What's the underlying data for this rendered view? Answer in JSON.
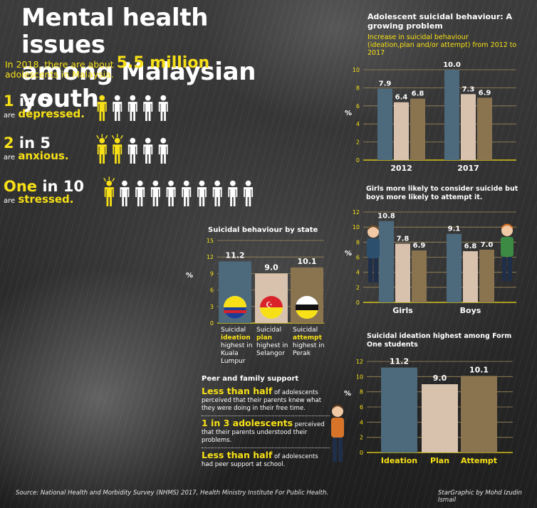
{
  "header": {
    "title_line1": "Mental health issues",
    "title_line2": "among Malaysian youth",
    "intro_pre": "In 2018, there are about",
    "intro_big": "5.5 million",
    "intro_post": "adolescents in Malaysia."
  },
  "stats": [
    {
      "num": "1",
      "in": " in 5",
      "are": "are",
      "word": "depressed.",
      "highlighted": 1,
      "total": 5
    },
    {
      "num": "2",
      "in": " in 5",
      "are": "are",
      "word": "anxious.",
      "highlighted": 2,
      "total": 5
    },
    {
      "num": "One",
      "in": " in 10",
      "are": "are",
      "word": "stressed.",
      "highlighted": 1,
      "total": 10
    }
  ],
  "colors": {
    "blue_gray": "#4d6a7c",
    "beige": "#d9c2ad",
    "olive": "#8a7450",
    "yellow": "#f7e017",
    "grid": "#a08a5a"
  },
  "chart_data": [
    {
      "id": "growing",
      "type": "bar",
      "title": "Adolescent suicidal behaviour: A growing problem",
      "subtitle": "Increase in suicidal behaviour (ideation,plan and/or attempt) from 2012 to 2017",
      "ylabel": "%",
      "ylim": [
        0,
        10
      ],
      "yticks": [
        0,
        2,
        4,
        6,
        8,
        10
      ],
      "categories": [
        "2012",
        "2017"
      ],
      "series": [
        {
          "values": [
            7.9,
            10.0
          ],
          "labels": [
            "7.9",
            "10.0"
          ],
          "color": "#4d6a7c"
        },
        {
          "values": [
            6.4,
            7.3
          ],
          "labels": [
            "6.4",
            "7.3"
          ],
          "color": "#d9c2ad"
        },
        {
          "values": [
            6.8,
            6.9
          ],
          "labels": [
            "6.8",
            "6.9"
          ],
          "color": "#8a7450"
        }
      ]
    },
    {
      "id": "gender",
      "type": "bar",
      "title": "Girls more likely to consider suicide but boys more likely to attempt it.",
      "ylabel": "%",
      "ylim": [
        0,
        12
      ],
      "yticks": [
        0,
        2,
        4,
        6,
        8,
        10,
        12
      ],
      "categories": [
        "Girls",
        "Boys"
      ],
      "series": [
        {
          "values": [
            10.8,
            9.1
          ],
          "labels": [
            "10.8",
            "9.1"
          ],
          "color": "#4d6a7c"
        },
        {
          "values": [
            7.8,
            6.8
          ],
          "labels": [
            "7.8",
            "6.8"
          ],
          "color": "#d9c2ad"
        },
        {
          "values": [
            6.9,
            7.0
          ],
          "labels": [
            "6.9",
            "7.0"
          ],
          "color": "#8a7450"
        }
      ]
    },
    {
      "id": "state",
      "type": "bar",
      "title": "Suicidal behaviour by state",
      "ylabel": "%",
      "ylim": [
        0,
        15
      ],
      "yticks": [
        0,
        3,
        6,
        9,
        12,
        15
      ],
      "categories": [
        "Kuala Lumpur",
        "Selangor",
        "Perak"
      ],
      "values": [
        11.2,
        9.0,
        10.1
      ],
      "labels": [
        "11.2",
        "9.0",
        "10.1"
      ],
      "colors": [
        "#4d6a7c",
        "#d9c2ad",
        "#8a7450"
      ]
    },
    {
      "id": "form",
      "type": "bar",
      "title": "Suicidal ideation highest among Form One students",
      "ylabel": "%",
      "ylim": [
        0,
        12
      ],
      "yticks": [
        0,
        2,
        4,
        6,
        8,
        10,
        12
      ],
      "categories": [
        "Ideation",
        "Plan",
        "Attempt"
      ],
      "values": [
        11.2,
        9.0,
        10.1
      ],
      "labels": [
        "11.2",
        "9.0",
        "10.1"
      ],
      "colors": [
        "#4d6a7c",
        "#d9c2ad",
        "#8a7450"
      ]
    }
  ],
  "state_labels": [
    {
      "pre": "Suicidal",
      "hl": "ideation",
      "post1": "highest in",
      "post2": "Kuala",
      "post3": "Lumpur"
    },
    {
      "pre": "Suicidal",
      "hl": "plan",
      "post1": "highest in",
      "post2": "Selangor",
      "post3": ""
    },
    {
      "pre": "Suicidal",
      "hl": "attempt",
      "post1": "highest in",
      "post2": "Perak",
      "post3": ""
    }
  ],
  "peer": {
    "title": "Peer and family support",
    "items": [
      {
        "lead": "Less than half",
        "rest": " of adolescents perceived that their parents knew what they were doing in their free time."
      },
      {
        "lead": "1 in 3 adolescents",
        "rest": " perceived that their parents understood their problems."
      },
      {
        "lead": "Less than half",
        "rest": " of adolescents had peer support at school."
      }
    ]
  },
  "footer": {
    "source": "Source: National Health and Morbidity Survey (NHMS) 2017, Health Ministry Institute For Public Health.",
    "credit": "StarGraphic by Mohd Izudin Ismail"
  }
}
